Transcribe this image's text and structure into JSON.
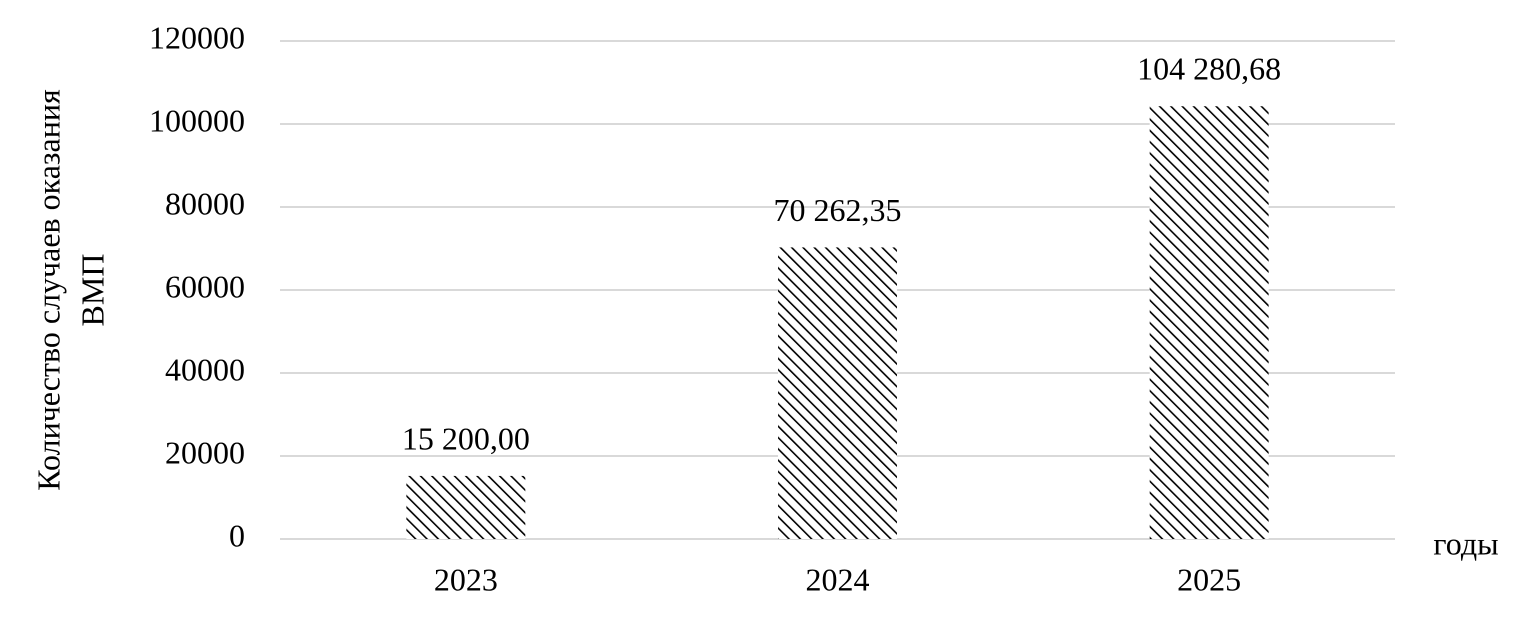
{
  "chart_data": {
    "type": "bar",
    "ylabel": [
      "Количество случаев оказания",
      "ВМП"
    ],
    "xlabel": "годы",
    "categories": [
      "2023",
      "2024",
      "2025"
    ],
    "values": [
      15200,
      70262.35,
      104280.68
    ],
    "value_labels": [
      "15 200,00",
      "70 262,35",
      "104 280,68"
    ],
    "color": "#000000",
    "pattern": "hatch",
    "ylim": [
      0,
      120000
    ],
    "yticks": [
      0,
      20000,
      40000,
      60000,
      80000,
      100000,
      120000
    ],
    "grid": true
  }
}
